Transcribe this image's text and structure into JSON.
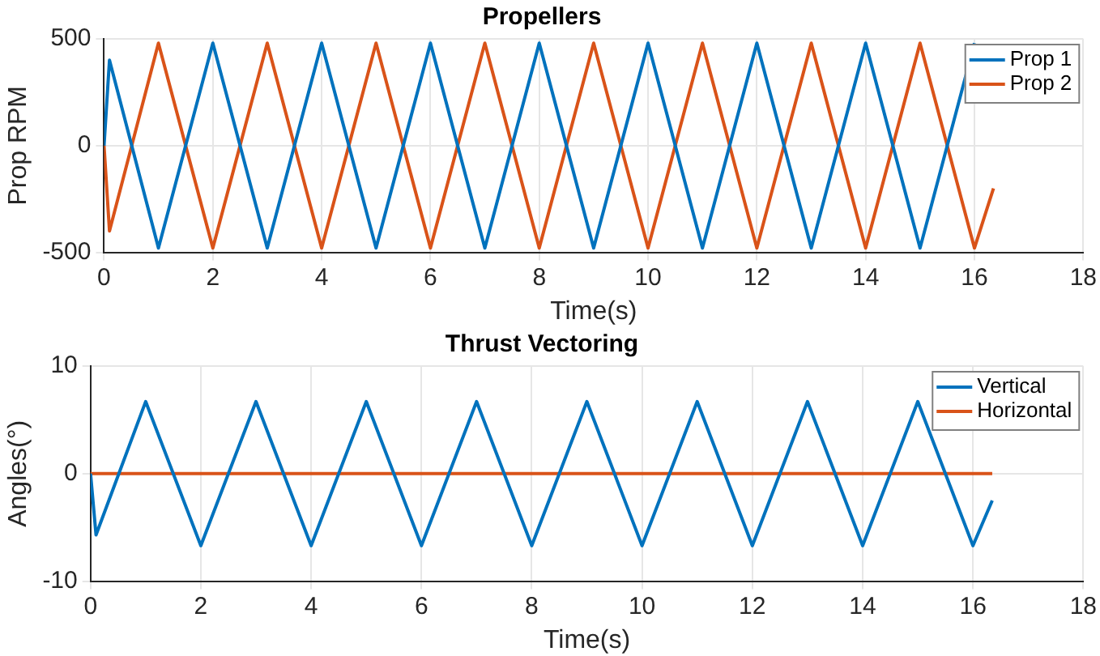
{
  "chart_data": [
    {
      "type": "line",
      "title": "Propellers",
      "xlabel": "Time(s)",
      "ylabel": "Prop RPM",
      "xlim": [
        0,
        18
      ],
      "xticks": [
        0,
        2,
        4,
        6,
        8,
        10,
        12,
        14,
        16,
        18
      ],
      "ylim": [
        -500,
        500
      ],
      "yticks": [
        -500,
        0,
        500
      ],
      "grid": true,
      "legend": "top right",
      "marker": "none",
      "line_style": "solid",
      "series": [
        {
          "name": "Prop 1",
          "color": "#0072bd",
          "x": [
            0,
            0.1,
            1,
            2,
            3,
            4,
            5,
            6,
            7,
            8,
            9,
            10,
            11,
            12,
            13,
            14,
            15,
            16
          ],
          "values": [
            0,
            400,
            -480,
            480,
            -480,
            480,
            -480,
            480,
            -480,
            480,
            -480,
            480,
            -480,
            480,
            -480,
            480,
            -480,
            480
          ]
        },
        {
          "name": "Prop 2",
          "color": "#d95319",
          "x": [
            0,
            0.1,
            1,
            2,
            3,
            4,
            5,
            6,
            7,
            8,
            9,
            10,
            11,
            12,
            13,
            14,
            15,
            16,
            16.35
          ],
          "values": [
            0,
            -400,
            480,
            -480,
            480,
            -480,
            480,
            -480,
            480,
            -480,
            480,
            -480,
            480,
            -480,
            480,
            -480,
            480,
            -480,
            -200
          ]
        }
      ]
    },
    {
      "type": "line",
      "title": "Thrust Vectoring",
      "xlabel": "Time(s)",
      "ylabel": "Angles(°)",
      "xlim": [
        0,
        18
      ],
      "xticks": [
        0,
        2,
        4,
        6,
        8,
        10,
        12,
        14,
        16,
        18
      ],
      "ylim": [
        -10,
        10
      ],
      "yticks": [
        -10,
        0,
        10
      ],
      "grid": true,
      "legend": "top right",
      "marker": "none",
      "line_style": "solid",
      "series": [
        {
          "name": "Vertical",
          "color": "#0072bd",
          "x": [
            0,
            0.1,
            1,
            2,
            3,
            4,
            5,
            6,
            7,
            8,
            9,
            10,
            11,
            12,
            13,
            14,
            15,
            16,
            16.35
          ],
          "values": [
            0,
            -5.7,
            6.7,
            -6.7,
            6.7,
            -6.7,
            6.7,
            -6.7,
            6.7,
            -6.7,
            6.7,
            -6.7,
            6.7,
            -6.7,
            6.7,
            -6.7,
            6.7,
            -6.7,
            -2.5
          ]
        },
        {
          "name": "Horizontal",
          "color": "#d95319",
          "x": [
            0,
            16.35
          ],
          "values": [
            0,
            0
          ]
        }
      ]
    }
  ]
}
